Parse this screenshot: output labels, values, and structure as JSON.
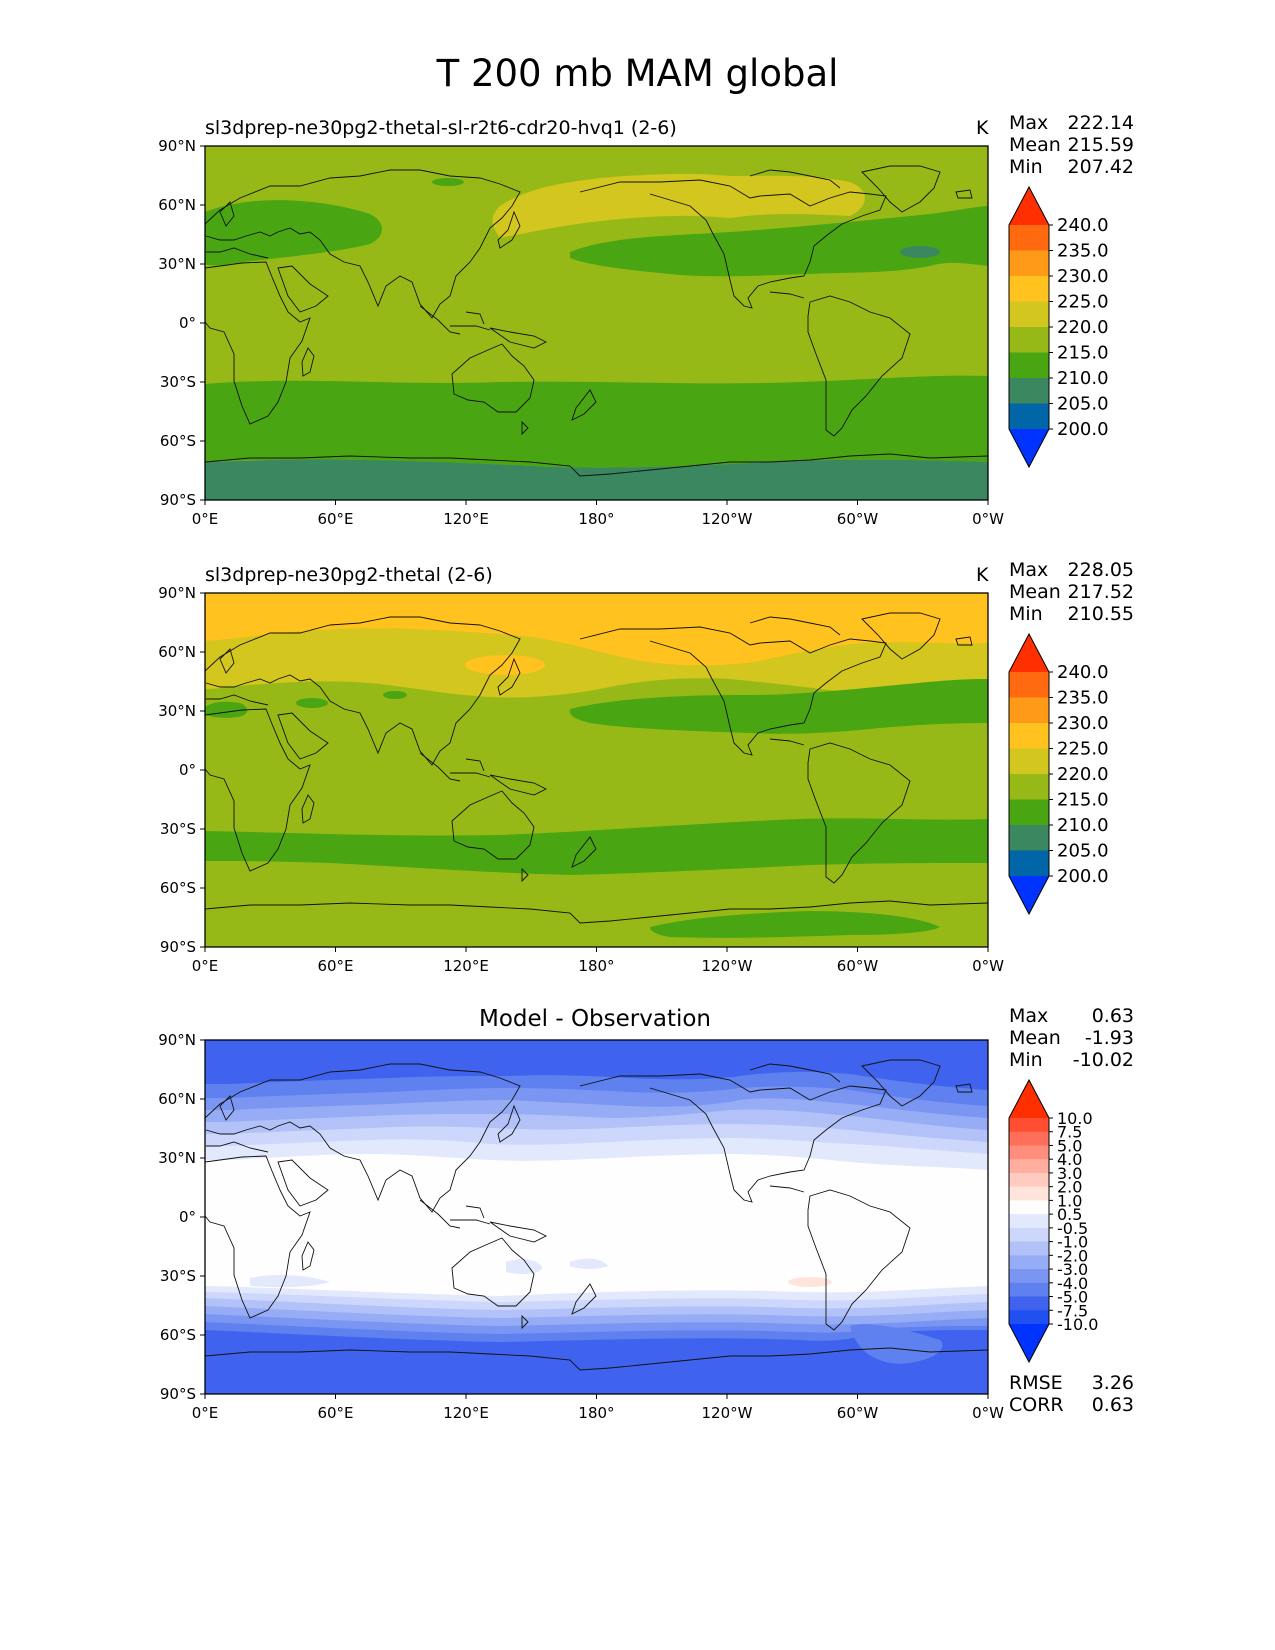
{
  "title": "T 200 mb MAM global",
  "axes": {
    "lat_ticks": [
      "90°N",
      "60°N",
      "30°N",
      "0°",
      "30°S",
      "60°S",
      "90°S"
    ],
    "lon_ticks": [
      "0°E",
      "60°E",
      "120°E",
      "180°",
      "120°W",
      "60°W",
      "0°W"
    ]
  },
  "panels": [
    {
      "title": "sl3dprep-ne30pg2-thetal-sl-r2t6-cdr20-hvq1 (2-6)",
      "unit": "K",
      "stats": {
        "max_label": "Max",
        "max": "222.14",
        "mean_label": "Mean",
        "mean": "215.59",
        "min_label": "Min",
        "min": "207.42"
      }
    },
    {
      "title": "sl3dprep-ne30pg2-thetal (2-6)",
      "unit": "K",
      "stats": {
        "max_label": "Max",
        "max": "228.05",
        "mean_label": "Mean",
        "mean": "217.52",
        "min_label": "Min",
        "min": "210.55"
      }
    },
    {
      "title": "Model - Observation",
      "unit": "",
      "stats": {
        "max_label": "Max",
        "max": "0.63",
        "mean_label": "Mean",
        "mean": "-1.93",
        "min_label": "Min",
        "min": "-10.02"
      },
      "metrics": {
        "rmse_label": "RMSE",
        "rmse": "3.26",
        "corr_label": "CORR",
        "corr": "0.63"
      }
    }
  ],
  "colorbars": {
    "temperature": {
      "levels": [
        "240.0",
        "235.0",
        "230.0",
        "225.0",
        "220.0",
        "215.0",
        "210.0",
        "205.0",
        "200.0"
      ],
      "colors": [
        "#ff2f00",
        "#ff6a10",
        "#ff9a18",
        "#ffc21e",
        "#d2c61f",
        "#97b918",
        "#4aa512",
        "#3a8760",
        "#0066a8",
        "#0033ff"
      ]
    },
    "difference": {
      "levels": [
        "10.0",
        "7.5",
        "5.0",
        "4.0",
        "3.0",
        "2.0",
        "1.0",
        "0.5",
        "-0.5",
        "-1.0",
        "-2.0",
        "-3.0",
        "-4.0",
        "-5.0",
        "-7.5",
        "-10.0"
      ],
      "colors": [
        "#ff2f00",
        "#ff4e32",
        "#ff6e58",
        "#ff8f7c",
        "#ffae9f",
        "#ffcbc0",
        "#ffe4dc",
        "#fefefe",
        "#e3e9fd",
        "#ccd7fb",
        "#b2c2f8",
        "#96acf5",
        "#7b96f2",
        "#5f80ef",
        "#3f63ee",
        "#2150f0",
        "#0033ff"
      ]
    }
  },
  "chart_data": [
    {
      "type": "heatmap",
      "title": "sl3dprep-ne30pg2-thetal-sl-r2t6-cdr20-hvq1 (2-6)",
      "unit": "K",
      "xlim": [
        0,
        360
      ],
      "ylim": [
        -90,
        90
      ],
      "levels": [
        200,
        205,
        210,
        215,
        220,
        225,
        230,
        235,
        240
      ],
      "max": 222.14,
      "mean": 215.59,
      "min": 207.42
    },
    {
      "type": "heatmap",
      "title": "sl3dprep-ne30pg2-thetal (2-6)",
      "unit": "K",
      "xlim": [
        0,
        360
      ],
      "ylim": [
        -90,
        90
      ],
      "levels": [
        200,
        205,
        210,
        215,
        220,
        225,
        230,
        235,
        240
      ],
      "max": 228.05,
      "mean": 217.52,
      "min": 210.55
    },
    {
      "type": "heatmap",
      "title": "Model - Observation",
      "xlim": [
        0,
        360
      ],
      "ylim": [
        -90,
        90
      ],
      "levels": [
        -10,
        -7.5,
        -5,
        -4,
        -3,
        -2,
        -1,
        -0.5,
        0.5,
        1,
        2,
        3,
        4,
        5,
        7.5,
        10
      ],
      "max": 0.63,
      "mean": -1.93,
      "min": -10.02,
      "rmse": 3.26,
      "corr": 0.63
    }
  ]
}
